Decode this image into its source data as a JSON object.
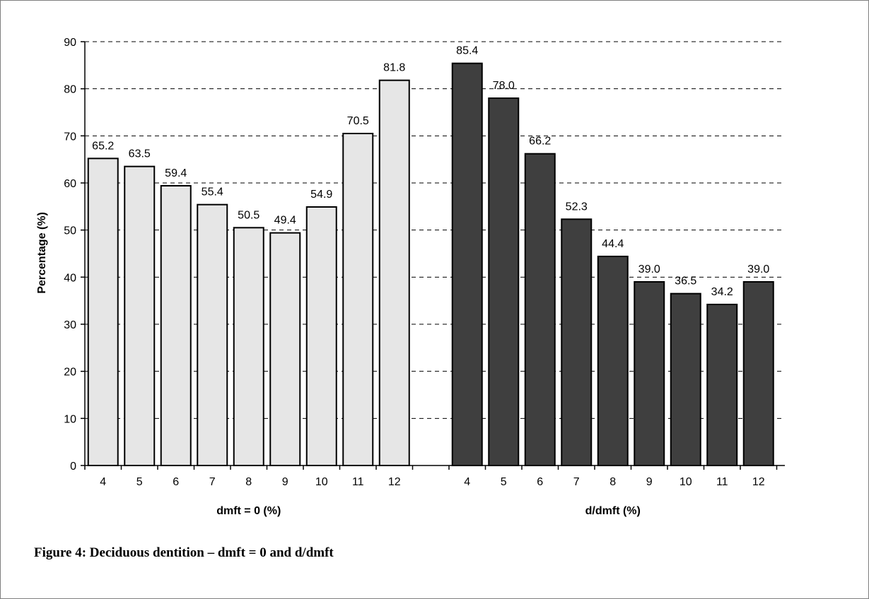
{
  "chart_data": {
    "type": "bar",
    "ylabel": "Percentage (%)",
    "ylim": [
      0,
      90
    ],
    "yticks": [
      0,
      10,
      20,
      30,
      40,
      50,
      60,
      70,
      80,
      90
    ],
    "grid": "horizontal-dashed",
    "groups": [
      {
        "name": "dmft = 0 (%)",
        "color": "#e6e6e6",
        "categories": [
          "4",
          "5",
          "6",
          "7",
          "8",
          "9",
          "10",
          "11",
          "12"
        ],
        "values": [
          65.2,
          63.5,
          59.4,
          55.4,
          50.5,
          49.4,
          54.9,
          70.5,
          81.8
        ],
        "labels": [
          "65.2",
          "63.5",
          "59.4",
          "55.4",
          "50.5",
          "49.4",
          "54.9",
          "70.5",
          "81.8"
        ]
      },
      {
        "name": "d/dmft (%)",
        "color": "#3f3f3f",
        "categories": [
          "4",
          "5",
          "6",
          "7",
          "8",
          "9",
          "10",
          "11",
          "12"
        ],
        "values": [
          85.4,
          78.0,
          66.2,
          52.3,
          44.4,
          39.0,
          36.5,
          34.2,
          39.0
        ],
        "labels": [
          "85.4",
          "78.0",
          "66.2",
          "52.3",
          "44.4",
          "39.0",
          "36.5",
          "34.2",
          "39.0"
        ]
      }
    ]
  },
  "caption": "Figure 4: Deciduous dentition – dmft = 0 and d/dmft"
}
